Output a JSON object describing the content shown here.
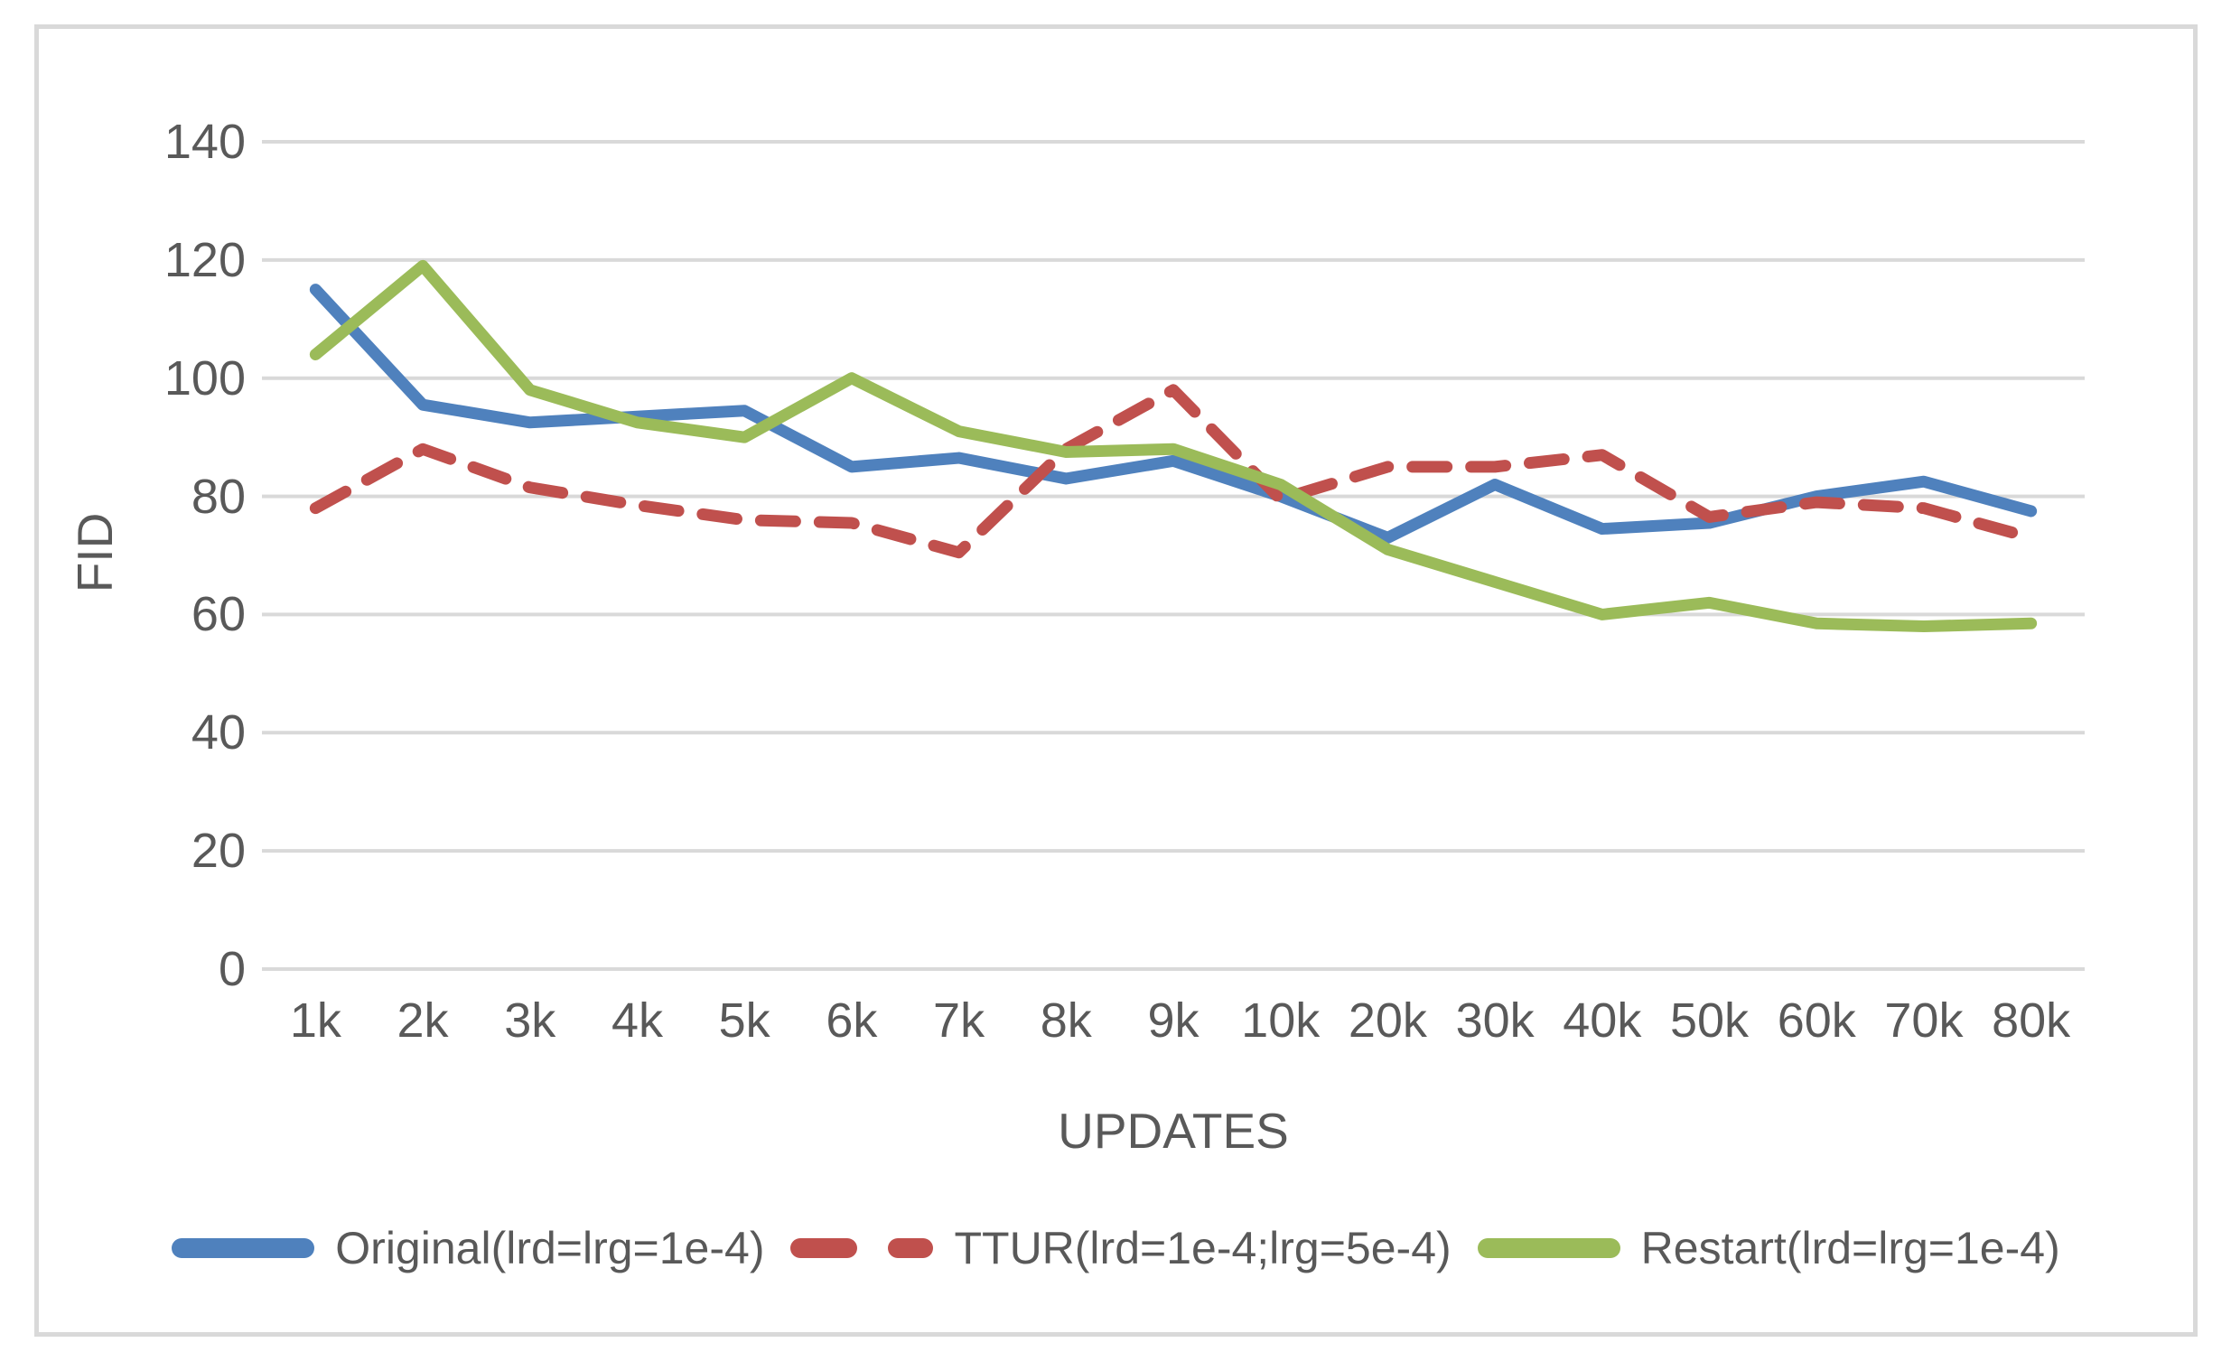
{
  "chart_data": {
    "type": "line",
    "title": "",
    "xlabel": "UPDATES",
    "ylabel": "FID",
    "categories": [
      "1k",
      "2k",
      "3k",
      "4k",
      "5k",
      "6k",
      "7k",
      "8k",
      "9k",
      "10k",
      "20k",
      "30k",
      "40k",
      "50k",
      "60k",
      "70k",
      "80k"
    ],
    "ylim": [
      0,
      140
    ],
    "ytick_step": 20,
    "y_ticks": [
      "140",
      "120",
      "100",
      "80",
      "60",
      "40",
      "20",
      "0"
    ],
    "grid": true,
    "legend_position": "bottom",
    "series": [
      {
        "name": "Original(lrd=lrg=1e-4)",
        "color": "#4F81BD",
        "dash": "solid",
        "values": [
          115,
          95.5,
          92.5,
          93.5,
          94.5,
          85,
          86.5,
          83,
          86,
          80,
          73,
          82,
          74.5,
          75.5,
          80,
          82.5,
          77.5
        ]
      },
      {
        "name": "TTUR(lrd=1e-4;lrg=5e-4)",
        "color": "#C0504D",
        "dash": "dashed",
        "values": [
          78,
          88,
          81.5,
          78.5,
          76,
          75.5,
          70.5,
          88,
          98,
          79.5,
          85,
          85,
          87,
          76.5,
          79,
          78,
          73
        ]
      },
      {
        "name": "Restart(lrd=lrg=1e-4)",
        "color": "#9BBB59",
        "dash": "solid",
        "values": [
          104,
          119,
          98,
          92.5,
          90,
          100,
          91,
          87.5,
          88,
          82,
          71,
          65.5,
          60,
          62,
          58.5,
          58,
          58.5
        ]
      }
    ]
  },
  "colors": {
    "gridline": "#D9D9D9",
    "frame_border": "#D9D9D9",
    "axis_text": "#595959",
    "background": "#FFFFFF"
  }
}
